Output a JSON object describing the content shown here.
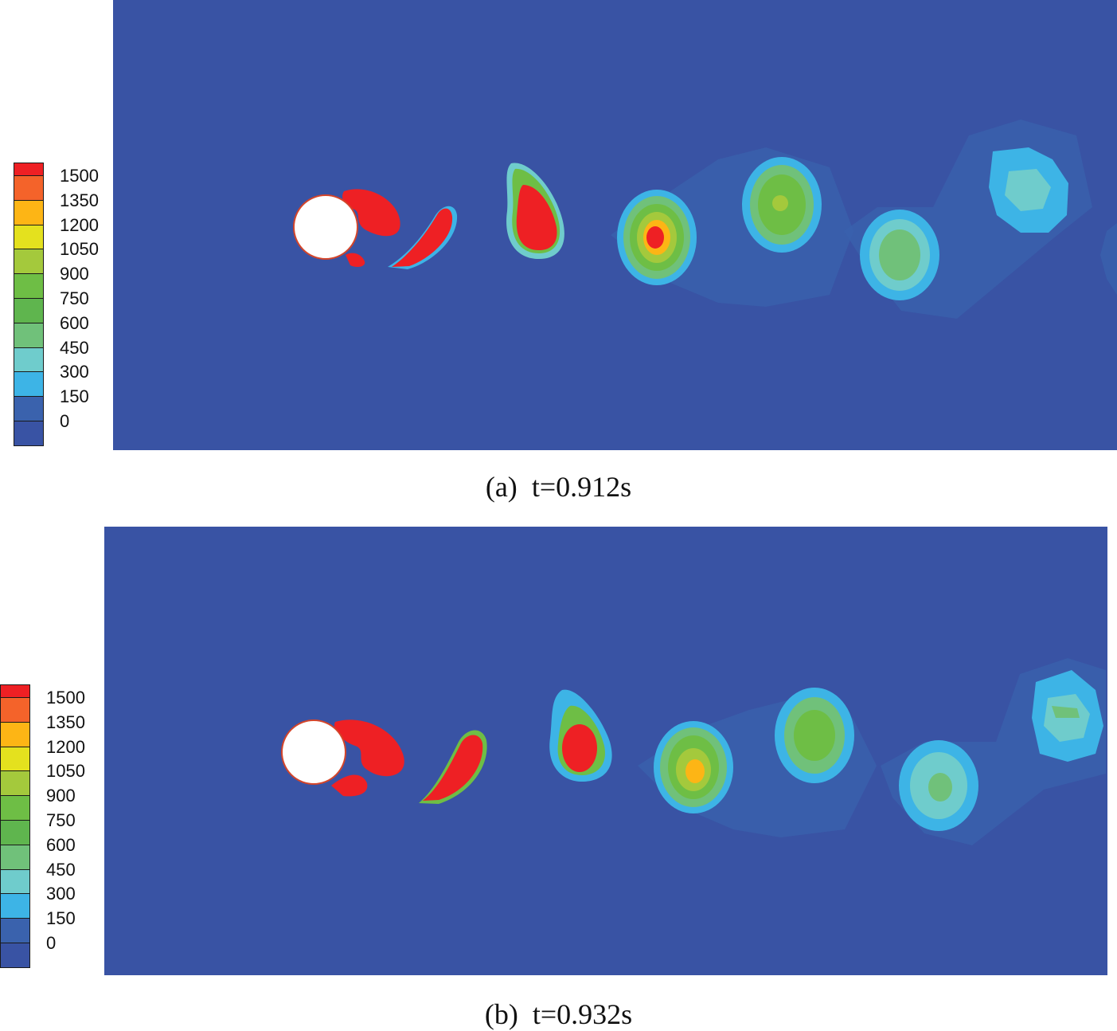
{
  "chart_data": [
    {
      "type": "heatmap",
      "title": "",
      "caption_label": "(a)",
      "caption_time": "t=0.912s",
      "colorbar": {
        "ticks": [
          "1500",
          "1350",
          "1200",
          "1050",
          "900",
          "750",
          "600",
          "450",
          "300",
          "150",
          "0"
        ],
        "colors": [
          "#ee2024",
          "#f4632a",
          "#fdb515",
          "#e4e11e",
          "#a4c93c",
          "#6ebe45",
          "#5fb54e",
          "#70c17a",
          "#6fcccc",
          "#3db4e6",
          "#3a62ad",
          "#3953a4"
        ]
      },
      "background_color": "#3953a4",
      "cylinder": {
        "cx": 0.0,
        "cy": 0.0,
        "r": 1.0
      }
    },
    {
      "type": "heatmap",
      "title": "",
      "caption_label": "(b)",
      "caption_time": "t=0.932s",
      "colorbar": {
        "ticks": [
          "1500",
          "1350",
          "1200",
          "1050",
          "900",
          "750",
          "600",
          "450",
          "300",
          "150",
          "0"
        ],
        "colors": [
          "#ee2024",
          "#f4632a",
          "#fdb515",
          "#e4e11e",
          "#a4c93c",
          "#6ebe45",
          "#5fb54e",
          "#70c17a",
          "#6fcccc",
          "#3db4e6",
          "#3a62ad",
          "#3953a4"
        ]
      },
      "background_color": "#3953a4",
      "cylinder": {
        "cx": 0.0,
        "cy": 0.0,
        "r": 1.0
      }
    }
  ]
}
